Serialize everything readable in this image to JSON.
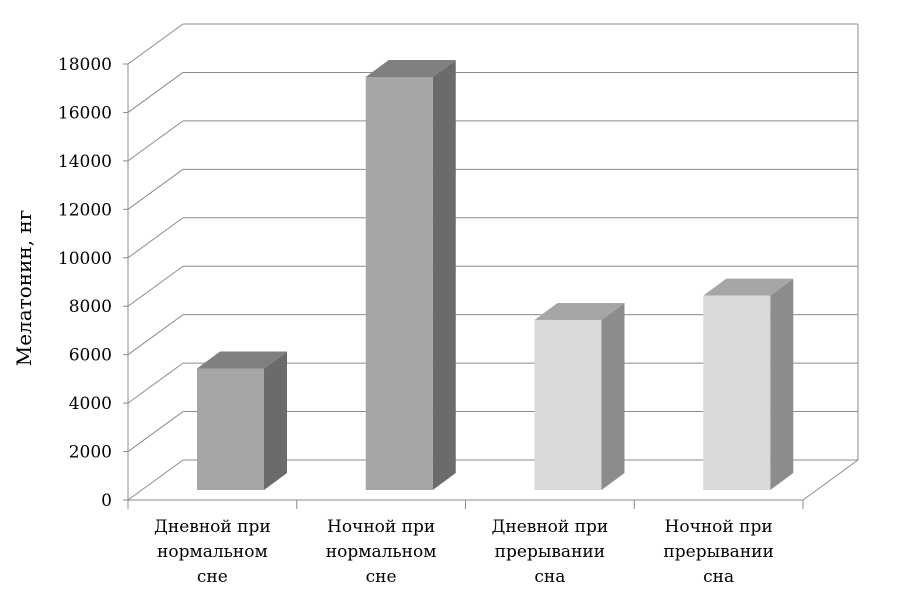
{
  "chart_data": {
    "type": "bar",
    "title": "",
    "xlabel": "",
    "ylabel": "Мелатонин, нг",
    "ylim": [
      0,
      18000
    ],
    "yticks": [
      0,
      2000,
      4000,
      6000,
      8000,
      10000,
      12000,
      14000,
      16000,
      18000
    ],
    "grid": true,
    "categories": [
      [
        "Дневной при",
        "нормальном",
        "сне"
      ],
      [
        "Ночной при",
        "нормальном",
        "сне"
      ],
      [
        "Дневной при",
        "прерывании",
        "сна"
      ],
      [
        "Ночной при",
        "прерывании",
        "сна"
      ]
    ],
    "values": [
      5000,
      17000,
      7000,
      8000
    ],
    "bar_colors": [
      {
        "front": "#a6a6a6",
        "side": "#6b6b6b",
        "top": "#808080"
      },
      {
        "front": "#a6a6a6",
        "side": "#6b6b6b",
        "top": "#808080"
      },
      {
        "front": "#d9d9d9",
        "side": "#8c8c8c",
        "top": "#a6a6a6"
      },
      {
        "front": "#d9d9d9",
        "side": "#8c8c8c",
        "top": "#a6a6a6"
      }
    ]
  }
}
